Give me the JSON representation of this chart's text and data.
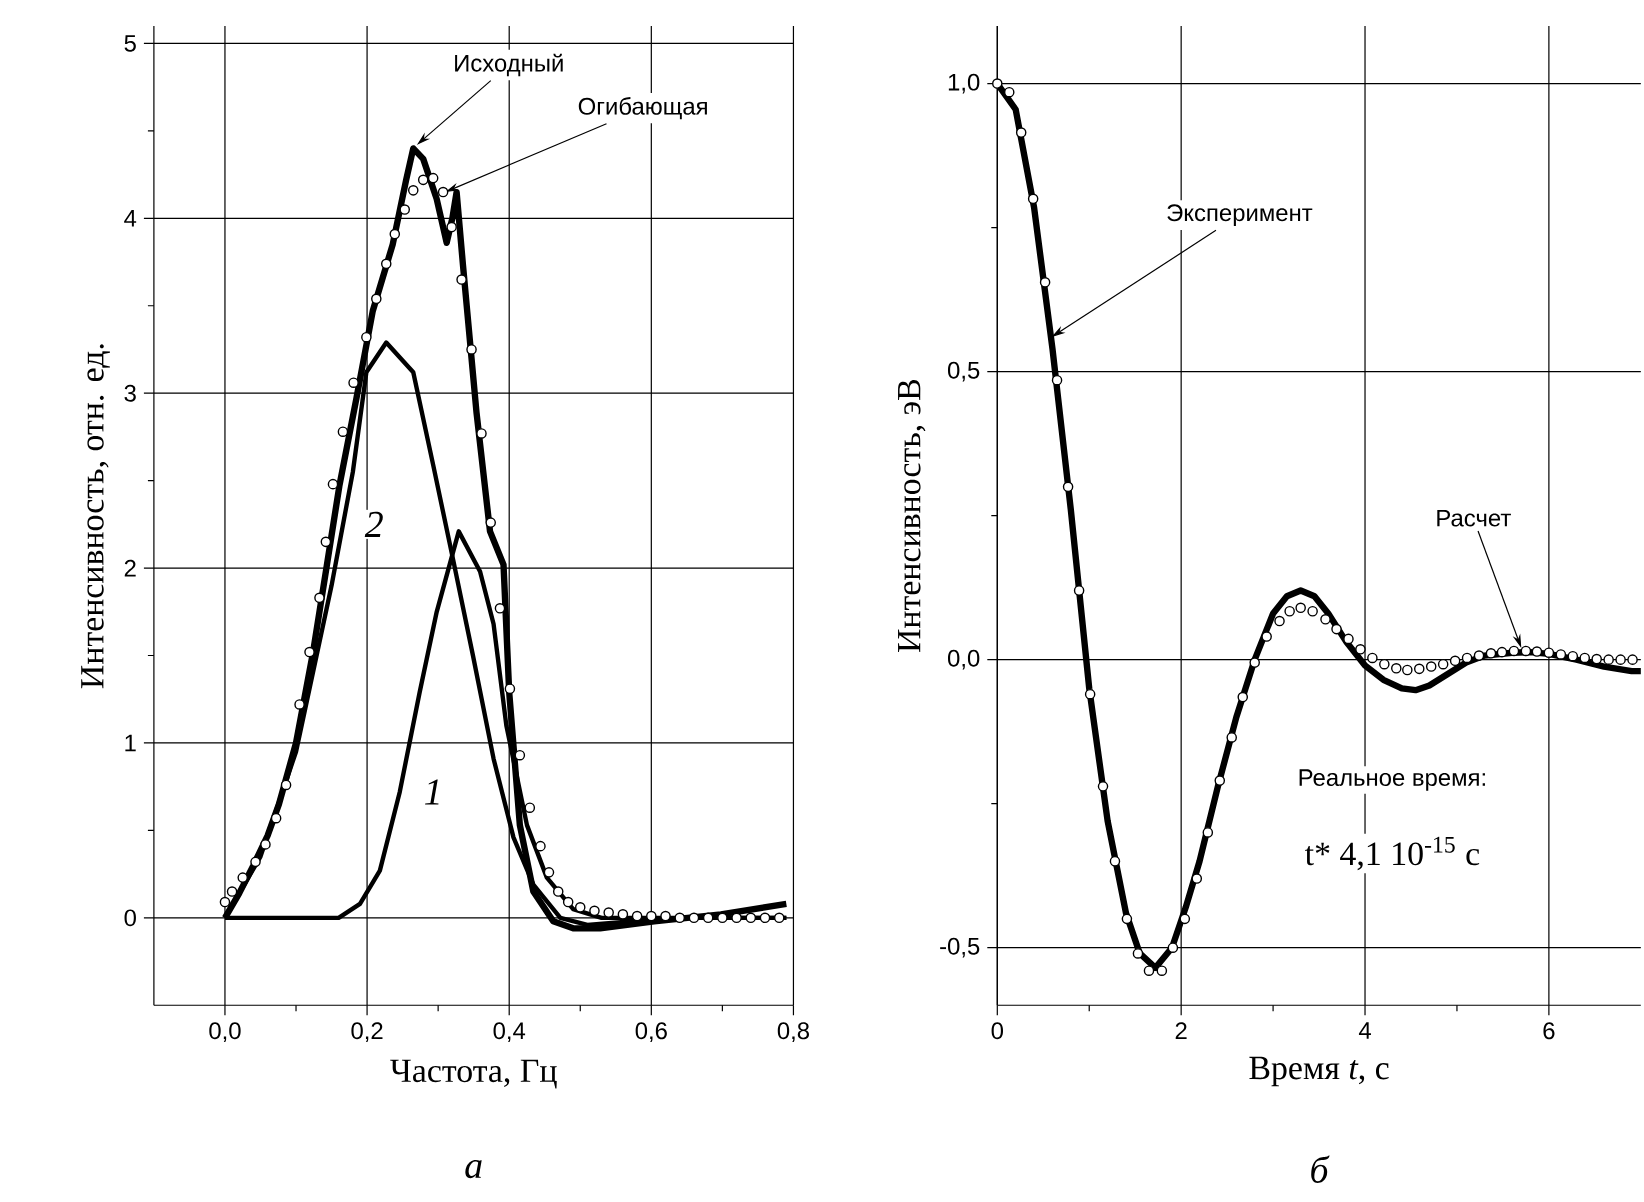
{
  "chart_data": [
    {
      "type": "line",
      "xlabel": "Частота, Гц",
      "ylabel": "Интенсивность, отн. ед.",
      "xlim": [
        -0.1,
        0.8
      ],
      "ylim": [
        -0.5,
        5.1
      ],
      "xticks": [
        {
          "value": 0,
          "label": "0,0"
        },
        {
          "value": 0.2,
          "label": "0,2"
        },
        {
          "value": 0.4,
          "label": "0,4"
        },
        {
          "value": 0.6,
          "label": "0,6"
        },
        {
          "value": 0.8,
          "label": "0,8"
        }
      ],
      "yticks": [
        0,
        1,
        2,
        3,
        4,
        5
      ],
      "grid": true,
      "series": [
        {
          "type": "line",
          "color": "#000000",
          "x": [
            0,
            0.02,
            0.04,
            0.06,
            0.076,
            0.1,
            0.124,
            0.142,
            0.161,
            0.185,
            0.208,
            0.236,
            0.255,
            0.265,
            0.279,
            0.298,
            0.312,
            0.32,
            0.326,
            0.335,
            0.354,
            0.373,
            0.392,
            0.4,
            0.415,
            0.434,
            0.462,
            0.49,
            0.528,
            0.604,
            0.698,
            0.79
          ],
          "values": [
            0,
            0.14,
            0.3,
            0.47,
            0.65,
            1.0,
            1.52,
            1.98,
            2.47,
            2.97,
            3.47,
            3.85,
            4.22,
            4.4,
            4.34,
            4.11,
            3.86,
            4.0,
            4.15,
            3.73,
            2.89,
            2.21,
            2.02,
            1.29,
            0.53,
            0.15,
            -0.02,
            -0.06,
            -0.06,
            -0.02,
            0.02,
            0.08
          ]
        },
        {
          "type": "line",
          "color": "#000000",
          "x": [
            0,
            0.05,
            0.1,
            0.15,
            0.18,
            0.199,
            0.227,
            0.265,
            0.293,
            0.321,
            0.349,
            0.378,
            0.406,
            0.434,
            0.472,
            0.51,
            0.57,
            0.65,
            0.79
          ],
          "values": [
            0,
            0.35,
            0.95,
            1.9,
            2.55,
            3.12,
            3.29,
            3.12,
            2.59,
            2.05,
            1.5,
            0.91,
            0.46,
            0.19,
            0.0,
            -0.04,
            -0.02,
            0,
            0
          ]
        },
        {
          "type": "line",
          "color": "#000000",
          "x": [
            0,
            0.1,
            0.16,
            0.19,
            0.218,
            0.246,
            0.274,
            0.298,
            0.329,
            0.359,
            0.378,
            0.396,
            0.425,
            0.453,
            0.49,
            0.53,
            0.6,
            0.79
          ],
          "values": [
            0,
            0,
            0,
            0.08,
            0.27,
            0.72,
            1.29,
            1.75,
            2.21,
            1.98,
            1.68,
            1.1,
            0.53,
            0.23,
            0.05,
            0,
            0,
            0
          ]
        },
        {
          "type": "scatter",
          "marker": "circle",
          "color": "#000000",
          "x": [
            0,
            0.01,
            0.025,
            0.043,
            0.057,
            0.072,
            0.086,
            0.105,
            0.119,
            0.133,
            0.142,
            0.152,
            0.166,
            0.181,
            0.199,
            0.213,
            0.227,
            0.239,
            0.253,
            0.265,
            0.279,
            0.293,
            0.307,
            0.319,
            0.333,
            0.347,
            0.361,
            0.374,
            0.387,
            0.401,
            0.415,
            0.429,
            0.444,
            0.456,
            0.469,
            0.483,
            0.5,
            0.52,
            0.54,
            0.56,
            0.58,
            0.6,
            0.62,
            0.64,
            0.66,
            0.68,
            0.7,
            0.72,
            0.74,
            0.76,
            0.78
          ],
          "values": [
            0.09,
            0.15,
            0.23,
            0.32,
            0.42,
            0.57,
            0.76,
            1.22,
            1.52,
            1.83,
            2.15,
            2.48,
            2.78,
            3.06,
            3.32,
            3.54,
            3.74,
            3.91,
            4.05,
            4.16,
            4.22,
            4.23,
            4.15,
            3.95,
            3.65,
            3.25,
            2.77,
            2.26,
            1.77,
            1.31,
            0.93,
            0.63,
            0.41,
            0.26,
            0.15,
            0.09,
            0.06,
            0.04,
            0.03,
            0.02,
            0.01,
            0.01,
            0.01,
            0,
            0,
            0,
            0,
            0,
            0,
            0,
            0
          ]
        }
      ],
      "annotations": [
        {
          "text": "Исходный",
          "x": 0.27,
          "y": 4.42
        },
        {
          "text": "Огибающая",
          "x": 0.31,
          "y": 4.15
        },
        {
          "text": "2",
          "x": 0.21,
          "y": 2.25
        },
        {
          "text": "1",
          "x": 0.293,
          "y": 0.72
        },
        "а"
      ]
    },
    {
      "type": "line",
      "xlabel": "Время *t*, с",
      "ylabel": "Интенсивность, эВ",
      "xlim": [
        0,
        7
      ],
      "ylim": [
        -0.6,
        1.1
      ],
      "xticks": [
        0,
        2,
        4,
        6
      ],
      "yticks": [
        {
          "value": -0.5,
          "label": "-0,5"
        },
        {
          "value": 0,
          "label": "0,0"
        },
        {
          "value": 0.5,
          "label": "0,5"
        },
        {
          "value": 1,
          "label": "1,0"
        }
      ],
      "grid": true,
      "series": [
        {
          "type": "line",
          "color": "#000000",
          "x": [
            0,
            0.2,
            0.4,
            0.6,
            0.8,
            1.0,
            1.2,
            1.4,
            1.55,
            1.72,
            1.9,
            2.05,
            2.2,
            2.4,
            2.6,
            2.8,
            3.0,
            3.15,
            3.3,
            3.45,
            3.6,
            3.8,
            4.0,
            4.2,
            4.4,
            4.55,
            4.7,
            4.9,
            5.1,
            5.3,
            5.6,
            5.8,
            6.0,
            6.3,
            6.6,
            6.9,
            7.0
          ],
          "values": [
            1.0,
            0.955,
            0.785,
            0.54,
            0.26,
            -0.05,
            -0.28,
            -0.44,
            -0.51,
            -0.535,
            -0.5,
            -0.43,
            -0.35,
            -0.22,
            -0.1,
            0.0,
            0.08,
            0.11,
            0.12,
            0.11,
            0.08,
            0.03,
            -0.01,
            -0.035,
            -0.05,
            -0.053,
            -0.045,
            -0.025,
            -0.005,
            0.007,
            0.012,
            0.013,
            0.01,
            0.0,
            -0.012,
            -0.02,
            -0.02
          ]
        },
        {
          "type": "scatter",
          "marker": "circle",
          "color": "#000000",
          "x": [
            0,
            0.13,
            0.26,
            0.39,
            0.52,
            0.65,
            0.77,
            0.89,
            1.01,
            1.15,
            1.28,
            1.41,
            1.53,
            1.65,
            1.79,
            1.91,
            2.04,
            2.17,
            2.29,
            2.42,
            2.55,
            2.67,
            2.8,
            2.93,
            3.07,
            3.18,
            3.3,
            3.43,
            3.57,
            3.69,
            3.82,
            3.95,
            4.08,
            4.21,
            4.34,
            4.46,
            4.59,
            4.72,
            4.85,
            4.98,
            5.11,
            5.24,
            5.37,
            5.49,
            5.62,
            5.75,
            5.87,
            6.0,
            6.13,
            6.26,
            6.39,
            6.52,
            6.65,
            6.78,
            6.91
          ],
          "values": [
            1.0,
            0.985,
            0.915,
            0.8,
            0.655,
            0.485,
            0.3,
            0.12,
            -0.06,
            -0.22,
            -0.35,
            -0.45,
            -0.51,
            -0.54,
            -0.54,
            -0.5,
            -0.45,
            -0.38,
            -0.3,
            -0.21,
            -0.135,
            -0.065,
            -0.005,
            0.04,
            0.067,
            0.084,
            0.09,
            0.084,
            0.07,
            0.053,
            0.036,
            0.018,
            0.003,
            -0.008,
            -0.015,
            -0.018,
            -0.016,
            -0.012,
            -0.008,
            -0.002,
            0.003,
            0.007,
            0.011,
            0.013,
            0.015,
            0.015,
            0.014,
            0.012,
            0.009,
            0.006,
            0.003,
            0.001,
            0,
            0,
            0
          ]
        }
      ],
      "annotations": [
        {
          "text": "Эксперимент",
          "x": 0.59,
          "y": 0.56
        },
        {
          "text": "Расчет",
          "x": 5.7,
          "y": 0.02
        },
        "Реальное время:",
        "t* 4,1 10$^{-15}$ с",
        "б"
      ]
    }
  ]
}
